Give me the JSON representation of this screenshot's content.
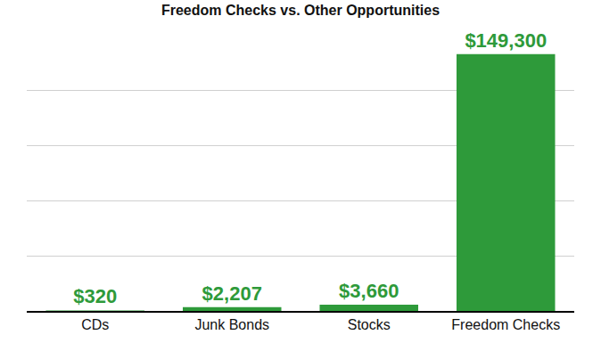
{
  "chart_data": {
    "type": "bar",
    "title": "Freedom Checks vs. Other Opportunities",
    "categories": [
      "CDs",
      "Junk Bonds",
      "Stocks",
      "Freedom Checks"
    ],
    "values": [
      320,
      2207,
      3660,
      149300
    ],
    "value_labels": [
      "$320",
      "$2,207",
      "$3,660",
      "$149,300"
    ],
    "color": "#2e9a3a",
    "ylim": [
      0,
      160000
    ],
    "yticks": [
      0,
      32000,
      64000,
      96000,
      128000,
      160000
    ],
    "grid": true,
    "data_labels": true,
    "tick_labels": "x"
  }
}
